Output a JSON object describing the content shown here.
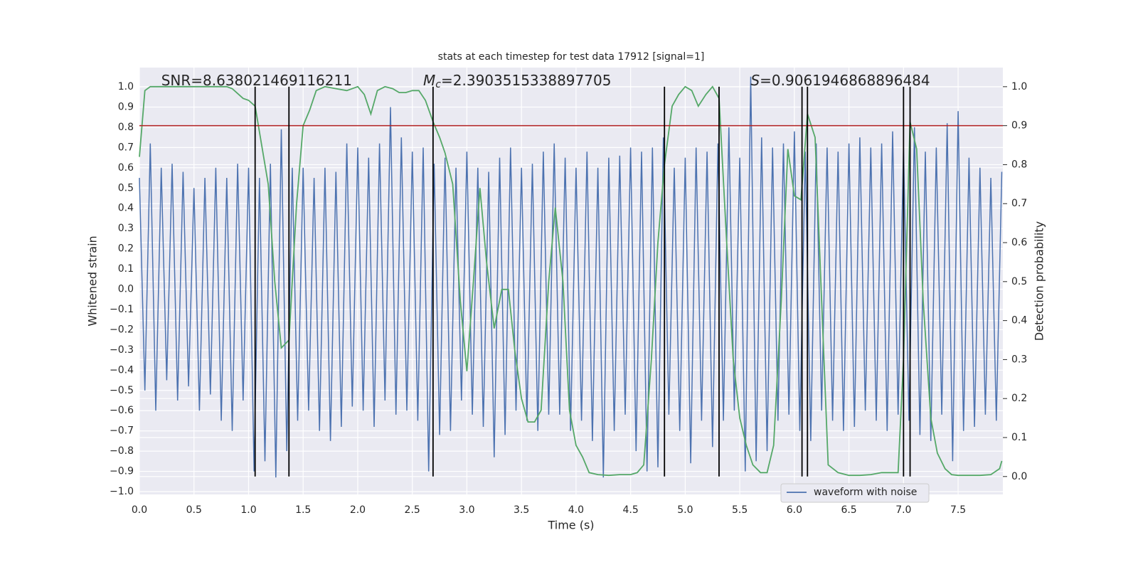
{
  "chart_data": {
    "type": "line",
    "title": "stats at each timestep for test data 17912 [signal=1]",
    "xlabel": "Time (s)",
    "ylabel": "Whitened strain",
    "y2label": "Detection probability",
    "annotations": [
      {
        "label": "SNR=8.638021469116211",
        "x": 0.2
      },
      {
        "symbol": "M",
        "sub": "c",
        "label": "=2.3903515338897705",
        "x": 2.6
      },
      {
        "symbol": "S",
        "label": "=0.9061946868896484",
        "x": 5.6
      }
    ],
    "xlim": [
      0,
      7.91
    ],
    "ylim": [
      -1.014,
      1.095
    ],
    "y2lim": [
      -0.046,
      1.049
    ],
    "xticks": [
      {
        "value": 0,
        "label": "0.0"
      },
      {
        "value": 0.5,
        "label": "0.5"
      },
      {
        "value": 1,
        "label": "1.0"
      },
      {
        "value": 1.5,
        "label": "1.5"
      },
      {
        "value": 2,
        "label": "2.0"
      },
      {
        "value": 2.5,
        "label": "2.5"
      },
      {
        "value": 3,
        "label": "3.0"
      },
      {
        "value": 3.5,
        "label": "3.5"
      },
      {
        "value": 4,
        "label": "4.0"
      },
      {
        "value": 4.5,
        "label": "4.5"
      },
      {
        "value": 5,
        "label": "5.0"
      },
      {
        "value": 5.5,
        "label": "5.5"
      },
      {
        "value": 6,
        "label": "6.0"
      },
      {
        "value": 6.5,
        "label": "6.5"
      },
      {
        "value": 7,
        "label": "7.0"
      },
      {
        "value": 7.5,
        "label": "7.5"
      }
    ],
    "yticks": [
      {
        "value": -1,
        "label": "−1.0"
      },
      {
        "value": -0.9,
        "label": "−0.9"
      },
      {
        "value": -0.8,
        "label": "−0.8"
      },
      {
        "value": -0.7,
        "label": "−0.7"
      },
      {
        "value": -0.6,
        "label": "−0.6"
      },
      {
        "value": -0.5,
        "label": "−0.5"
      },
      {
        "value": -0.4,
        "label": "−0.4"
      },
      {
        "value": -0.3,
        "label": "−0.3"
      },
      {
        "value": -0.2,
        "label": "−0.2"
      },
      {
        "value": -0.1,
        "label": "−0.1"
      },
      {
        "value": 0,
        "label": "0.0"
      },
      {
        "value": 0.1,
        "label": "0.1"
      },
      {
        "value": 0.2,
        "label": "0.2"
      },
      {
        "value": 0.3,
        "label": "0.3"
      },
      {
        "value": 0.4,
        "label": "0.4"
      },
      {
        "value": 0.5,
        "label": "0.5"
      },
      {
        "value": 0.6,
        "label": "0.6"
      },
      {
        "value": 0.7,
        "label": "0.7"
      },
      {
        "value": 0.8,
        "label": "0.8"
      },
      {
        "value": 0.9,
        "label": "0.9"
      },
      {
        "value": 1,
        "label": "1.0"
      }
    ],
    "y2ticks": [
      {
        "value": 0,
        "label": "0.0"
      },
      {
        "value": 0.1,
        "label": "0.1"
      },
      {
        "value": 0.2,
        "label": "0.2"
      },
      {
        "value": 0.3,
        "label": "0.3"
      },
      {
        "value": 0.4,
        "label": "0.4"
      },
      {
        "value": 0.5,
        "label": "0.5"
      },
      {
        "value": 0.6,
        "label": "0.6"
      },
      {
        "value": 0.7,
        "label": "0.7"
      },
      {
        "value": 0.8,
        "label": "0.8"
      },
      {
        "value": 0.9,
        "label": "0.9"
      },
      {
        "value": 1,
        "label": "1.0"
      }
    ],
    "grid": true,
    "legend": "lower right",
    "threshold": 0.9,
    "threshold_color": "#b22222",
    "vlines": [
      1.06,
      1.37,
      2.69,
      4.81,
      5.31,
      6.07,
      6.12,
      7.0,
      7.06
    ],
    "vline_color": "#000000",
    "series": [
      {
        "name": "waveform with noise",
        "color": "#4c72b0",
        "x": [
          0,
          0.05,
          0.1,
          0.15,
          0.2,
          0.25,
          0.3,
          0.35,
          0.4,
          0.45,
          0.5,
          0.55,
          0.6,
          0.65,
          0.7,
          0.75,
          0.8,
          0.85,
          0.9,
          0.95,
          1,
          1.05,
          1.1,
          1.15,
          1.2,
          1.25,
          1.3,
          1.35,
          1.4,
          1.45,
          1.5,
          1.55,
          1.6,
          1.65,
          1.7,
          1.75,
          1.8,
          1.85,
          1.9,
          1.95,
          2,
          2.05,
          2.1,
          2.15,
          2.2,
          2.25,
          2.3,
          2.35,
          2.4,
          2.45,
          2.5,
          2.55,
          2.6,
          2.65,
          2.7,
          2.75,
          2.8,
          2.85,
          2.9,
          2.95,
          3,
          3.05,
          3.1,
          3.15,
          3.2,
          3.25,
          3.3,
          3.35,
          3.4,
          3.45,
          3.5,
          3.55,
          3.6,
          3.65,
          3.7,
          3.75,
          3.8,
          3.85,
          3.9,
          3.95,
          4,
          4.05,
          4.1,
          4.15,
          4.2,
          4.25,
          4.3,
          4.35,
          4.4,
          4.45,
          4.5,
          4.55,
          4.6,
          4.65,
          4.7,
          4.75,
          4.8,
          4.85,
          4.9,
          4.95,
          5,
          5.05,
          5.1,
          5.15,
          5.2,
          5.25,
          5.3,
          5.35,
          5.4,
          5.45,
          5.5,
          5.55,
          5.6,
          5.65,
          5.7,
          5.75,
          5.8,
          5.85,
          5.9,
          5.95,
          6,
          6.05,
          6.1,
          6.15,
          6.2,
          6.25,
          6.3,
          6.35,
          6.4,
          6.45,
          6.5,
          6.55,
          6.6,
          6.65,
          6.7,
          6.75,
          6.8,
          6.85,
          6.9,
          6.95,
          7,
          7.05,
          7.1,
          7.15,
          7.2,
          7.25,
          7.3,
          7.35,
          7.4,
          7.45,
          7.5,
          7.55,
          7.6,
          7.65,
          7.7,
          7.75,
          7.8,
          7.85,
          7.9
        ],
        "values": [
          0.55,
          -0.5,
          0.72,
          -0.6,
          0.6,
          -0.45,
          0.62,
          -0.55,
          0.58,
          -0.48,
          0.5,
          -0.6,
          0.55,
          -0.52,
          0.6,
          -0.65,
          0.55,
          -0.7,
          0.62,
          -0.55,
          0.6,
          -0.9,
          0.55,
          -0.85,
          0.62,
          -0.93,
          0.79,
          -0.8,
          0.6,
          -0.65,
          0.6,
          -0.6,
          0.55,
          -0.7,
          0.6,
          -0.75,
          0.58,
          -0.68,
          0.72,
          -0.58,
          0.7,
          -0.6,
          0.65,
          -0.68,
          0.72,
          -0.55,
          0.9,
          -0.62,
          0.75,
          -0.6,
          0.68,
          -0.65,
          0.7,
          -0.9,
          0.62,
          -0.72,
          0.65,
          -0.7,
          0.6,
          -0.55,
          0.68,
          -0.62,
          0.6,
          -0.68,
          0.58,
          -0.83,
          0.65,
          -0.72,
          0.7,
          -0.6,
          0.6,
          -0.65,
          0.62,
          -0.7,
          0.68,
          -0.62,
          0.72,
          -0.62,
          0.65,
          -0.7,
          0.6,
          -0.65,
          0.68,
          -0.75,
          0.6,
          -0.93,
          0.65,
          -0.7,
          0.66,
          -0.62,
          0.7,
          -0.8,
          0.68,
          -0.9,
          0.7,
          -0.88,
          0.75,
          -0.62,
          0.6,
          -0.7,
          0.65,
          -0.86,
          0.7,
          -0.65,
          0.68,
          -0.78,
          0.72,
          -0.65,
          0.8,
          -0.6,
          0.65,
          -0.9,
          1.05,
          -0.85,
          0.75,
          -0.8,
          0.7,
          -0.65,
          0.72,
          -0.62,
          0.78,
          -0.7,
          0.68,
          -0.75,
          0.72,
          -0.6,
          0.7,
          -0.65,
          0.68,
          -0.7,
          0.72,
          -0.68,
          0.75,
          -0.6,
          0.7,
          -0.65,
          0.72,
          -0.7,
          0.78,
          -0.62,
          0.7,
          -0.65,
          0.8,
          -0.72,
          0.68,
          -0.75,
          0.7,
          -0.62,
          0.82,
          -0.85,
          0.88,
          -0.7,
          0.65,
          -0.68,
          0.6,
          -0.62,
          0.55,
          -0.65,
          0.58
        ]
      },
      {
        "color": "#55a868",
        "axis": "y2",
        "x": [
          0,
          0.05,
          0.1,
          0.2,
          0.4,
          0.6,
          0.8,
          0.85,
          0.95,
          1,
          1.06,
          1.12,
          1.18,
          1.24,
          1.3,
          1.37,
          1.44,
          1.5,
          1.56,
          1.62,
          1.7,
          1.8,
          1.9,
          2,
          2.06,
          2.12,
          2.18,
          2.25,
          2.32,
          2.38,
          2.44,
          2.5,
          2.56,
          2.62,
          2.69,
          2.75,
          2.8,
          2.87,
          2.94,
          3,
          3.06,
          3.12,
          3.18,
          3.25,
          3.32,
          3.38,
          3.44,
          3.5,
          3.56,
          3.62,
          3.68,
          3.75,
          3.81,
          3.88,
          3.94,
          4,
          4.06,
          4.12,
          4.2,
          4.3,
          4.4,
          4.5,
          4.56,
          4.62,
          4.69,
          4.75,
          4.81,
          4.88,
          4.94,
          5,
          5.06,
          5.12,
          5.19,
          5.25,
          5.31,
          5.38,
          5.44,
          5.5,
          5.56,
          5.62,
          5.69,
          5.75,
          5.81,
          5.88,
          5.94,
          6,
          6.06,
          6.12,
          6.19,
          6.25,
          6.31,
          6.4,
          6.5,
          6.6,
          6.7,
          6.8,
          6.9,
          6.95,
          7,
          7.06,
          7.12,
          7.18,
          7.25,
          7.31,
          7.38,
          7.44,
          7.5,
          7.6,
          7.7,
          7.8,
          7.88,
          7.9
        ],
        "values": [
          0.82,
          0.99,
          1,
          1,
          1,
          1,
          1,
          0.995,
          0.97,
          0.965,
          0.95,
          0.85,
          0.75,
          0.5,
          0.33,
          0.35,
          0.7,
          0.9,
          0.94,
          0.99,
          1,
          0.995,
          0.99,
          1,
          0.98,
          0.93,
          0.99,
          1,
          0.995,
          0.985,
          0.985,
          0.99,
          0.99,
          0.965,
          0.91,
          0.87,
          0.83,
          0.75,
          0.45,
          0.27,
          0.5,
          0.74,
          0.55,
          0.38,
          0.48,
          0.48,
          0.32,
          0.2,
          0.14,
          0.14,
          0.17,
          0.5,
          0.69,
          0.5,
          0.17,
          0.08,
          0.05,
          0.01,
          0.005,
          0.003,
          0.005,
          0.005,
          0.01,
          0.03,
          0.3,
          0.6,
          0.8,
          0.95,
          0.98,
          1,
          0.99,
          0.95,
          0.98,
          1,
          0.97,
          0.6,
          0.3,
          0.15,
          0.08,
          0.03,
          0.01,
          0.01,
          0.08,
          0.45,
          0.84,
          0.72,
          0.71,
          0.93,
          0.87,
          0.45,
          0.03,
          0.01,
          0.003,
          0.003,
          0.005,
          0.01,
          0.01,
          0.01,
          0.3,
          0.91,
          0.84,
          0.45,
          0.15,
          0.06,
          0.02,
          0.005,
          0.003,
          0.003,
          0.003,
          0.005,
          0.02,
          0.04
        ]
      }
    ]
  }
}
